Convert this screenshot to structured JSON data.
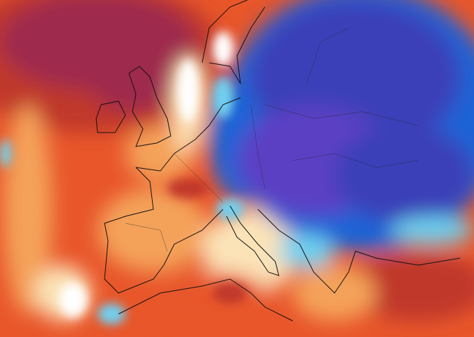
{
  "map": {
    "type": "temperature-anomaly",
    "palette": {
      "very_warm": "#9e2a4e",
      "warm_dark": "#c0392b",
      "warm": "#e8562a",
      "mild": "#f4a25a",
      "neutral": "#fbe3b8",
      "near_zero": "#ffffff",
      "cool": "#6fd0f0",
      "cold": "#1f63d6",
      "very_cold": "#3b3fb8",
      "extreme_cold": "#5b3fc4"
    },
    "border_color": "#111111"
  }
}
